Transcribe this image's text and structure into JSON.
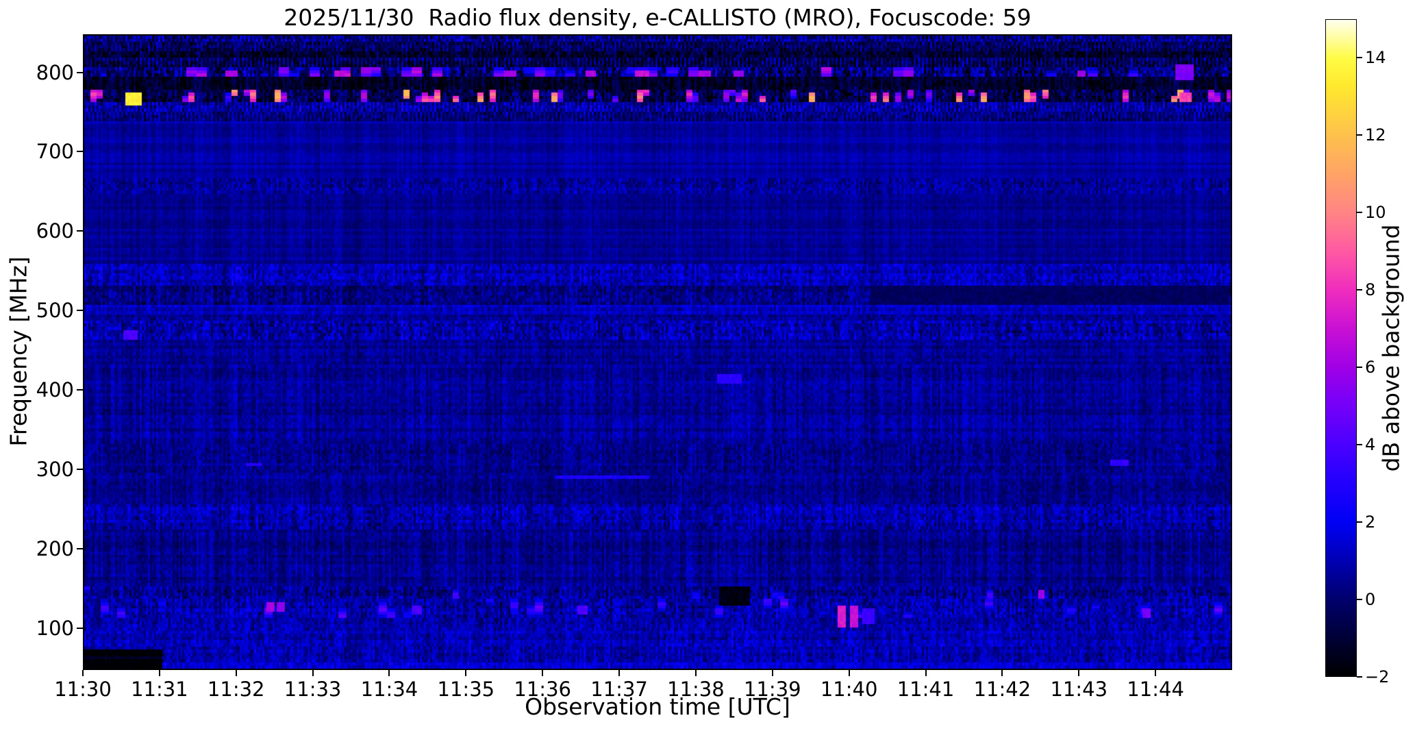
{
  "title": "2025/11/30  Radio flux density, e-CALLISTO (MRO), Focuscode: 59",
  "chart_data": {
    "type": "heatmap",
    "title": "2025/11/30  Radio flux density, e-CALLISTO (MRO), Focuscode: 59",
    "xlabel": "Observation time [UTC]",
    "ylabel": "Frequency [MHz]",
    "colorbar_label": "dB above background",
    "x_ticks": [
      "11:30",
      "11:31",
      "11:32",
      "11:33",
      "11:34",
      "11:35",
      "11:36",
      "11:37",
      "11:38",
      "11:39",
      "11:40",
      "11:41",
      "11:42",
      "11:43",
      "11:44"
    ],
    "y_ticks": [
      "800",
      "700",
      "600",
      "500",
      "400",
      "300",
      "200",
      "100"
    ],
    "y_tick_values": [
      800,
      700,
      600,
      500,
      400,
      300,
      200,
      100
    ],
    "colorbar_tick_labels": [
      "14",
      "12",
      "10",
      "8",
      "6",
      "4",
      "2",
      "0",
      "−2"
    ],
    "colorbar_tick_values": [
      14,
      12,
      10,
      8,
      6,
      4,
      2,
      0,
      -2
    ],
    "time_range_utc": [
      "11:30",
      "11:45"
    ],
    "time_range_min": [
      0,
      15
    ],
    "freq_range_mhz": [
      47,
      848
    ],
    "value_range_db": [
      -2,
      15
    ],
    "grid": false,
    "legend": "colorbar-right",
    "colormap": {
      "name": "gnuplot2-like",
      "stops": [
        [
          0.0,
          "#000000"
        ],
        [
          0.06,
          "#000038"
        ],
        [
          0.118,
          "#00006e"
        ],
        [
          0.176,
          "#0000b4"
        ],
        [
          0.235,
          "#0000f5"
        ],
        [
          0.31,
          "#2c00ff"
        ],
        [
          0.353,
          "#4b00ff"
        ],
        [
          0.42,
          "#7a00f8"
        ],
        [
          0.471,
          "#a000e6"
        ],
        [
          0.53,
          "#c911d4"
        ],
        [
          0.588,
          "#ef2dbe"
        ],
        [
          0.647,
          "#ff59a3"
        ],
        [
          0.706,
          "#ff8484"
        ],
        [
          0.765,
          "#ffa366"
        ],
        [
          0.824,
          "#fdc14c"
        ],
        [
          0.9,
          "#ffe92e"
        ],
        [
          0.941,
          "#fffb45"
        ],
        [
          1.0,
          "#fffff0"
        ]
      ]
    },
    "bands": [
      {
        "f_hi": 848,
        "f_lo": 838,
        "base": 0.2,
        "spk": 1.3,
        "streak": 0.9,
        "comb": 1
      },
      {
        "f_hi": 838,
        "f_lo": 829,
        "base": -0.5,
        "spk": 1.1,
        "streak": 0.8,
        "comb": 1
      },
      {
        "f_hi": 829,
        "f_lo": 818,
        "base": -1.0,
        "spk": 0.9,
        "streak": 1.0,
        "comb": 0
      },
      {
        "f_hi": 818,
        "f_lo": 806,
        "base": -0.8,
        "spk": 1.1,
        "streak": 1.3,
        "comb": 1
      },
      {
        "f_hi": 806,
        "f_lo": 794,
        "base": 0.1,
        "spk": 1.5,
        "streak": 1.3,
        "comb": 0,
        "dots": {
          "rate": 0.22,
          "lo": 2.5,
          "hi": 7.5,
          "w": 5,
          "h": 3
        }
      },
      {
        "f_hi": 794,
        "f_lo": 780,
        "base": -1.3,
        "spk": 0.7,
        "streak": 0.9,
        "comb": 0
      },
      {
        "f_hi": 780,
        "f_lo": 764,
        "base": -0.7,
        "spk": 1.2,
        "streak": 1.0,
        "comb": 0,
        "dots": {
          "rate": 0.3,
          "lo": 4,
          "hi": 12.5,
          "w": 3,
          "h": 2
        }
      },
      {
        "f_hi": 764,
        "f_lo": 752,
        "base": 0.5,
        "spk": 1.1,
        "streak": 1.0,
        "comb": 1
      },
      {
        "f_hi": 752,
        "f_lo": 740,
        "base": 0.1,
        "spk": 0.9,
        "streak": 0.8,
        "comb": 1
      },
      {
        "f_hi": 740,
        "f_lo": 668,
        "base": 0.7,
        "spk": 0.22,
        "streak": 0.25,
        "comb": 0
      },
      {
        "f_hi": 668,
        "f_lo": 649,
        "base": 0.75,
        "spk": 0.8,
        "streak": 0.6,
        "comb": 0
      },
      {
        "f_hi": 649,
        "f_lo": 561,
        "base": 0.5,
        "spk": 0.28,
        "streak": 0.3,
        "comb": 0
      },
      {
        "f_hi": 561,
        "f_lo": 532,
        "base": 1.0,
        "spk": 0.85,
        "streak": 0.7,
        "comb": 0
      },
      {
        "f_hi": 532,
        "f_lo": 506,
        "base": 0.3,
        "spk": 0.8,
        "streak": 0.7,
        "comb": 0
      },
      {
        "f_hi": 506,
        "f_lo": 494,
        "base": 1.15,
        "spk": 0.6,
        "streak": 0.5,
        "comb": 0
      },
      {
        "f_hi": 494,
        "f_lo": 486,
        "base": 0.5,
        "spk": 0.6,
        "streak": 0.5,
        "comb": 0
      },
      {
        "f_hi": 486,
        "f_lo": 462,
        "base": 0.85,
        "spk": 1.05,
        "streak": 0.9,
        "comb": 0
      },
      {
        "f_hi": 462,
        "f_lo": 430,
        "base": 0.5,
        "spk": 0.5,
        "streak": 0.5,
        "comb": 0
      },
      {
        "f_hi": 430,
        "f_lo": 330,
        "base": 0.55,
        "spk": 0.5,
        "streak": 0.6,
        "comb": 0
      },
      {
        "f_hi": 330,
        "f_lo": 296,
        "base": 0.5,
        "spk": 0.6,
        "streak": 0.6,
        "comb": 0
      },
      {
        "f_hi": 296,
        "f_lo": 256,
        "base": 0.4,
        "spk": 0.5,
        "streak": 0.55,
        "comb": 0
      },
      {
        "f_hi": 256,
        "f_lo": 222,
        "base": 0.85,
        "spk": 0.85,
        "streak": 0.8,
        "comb": 0
      },
      {
        "f_hi": 222,
        "f_lo": 152,
        "base": 0.4,
        "spk": 0.5,
        "streak": 0.7,
        "comb": 0
      },
      {
        "f_hi": 152,
        "f_lo": 134,
        "base": 0.55,
        "spk": 0.9,
        "streak": 0.9,
        "comb": 0,
        "dots": {
          "rate": 0.05,
          "lo": 2.5,
          "hi": 5,
          "w": 3,
          "h": 2
        }
      },
      {
        "f_hi": 134,
        "f_lo": 112,
        "base": 0.7,
        "spk": 0.95,
        "streak": 0.9,
        "comb": 0,
        "dots": {
          "rate": 0.1,
          "lo": 2.5,
          "hi": 5.5,
          "w": 4,
          "h": 3
        }
      },
      {
        "f_hi": 112,
        "f_lo": 96,
        "base": 0.8,
        "spk": 0.75,
        "streak": 0.7,
        "comb": 0
      },
      {
        "f_hi": 96,
        "f_lo": 74,
        "base": 1.0,
        "spk": 0.7,
        "streak": 0.7,
        "comb": 0
      },
      {
        "f_hi": 74,
        "f_lo": 54,
        "base": 0.9,
        "spk": 0.75,
        "streak": 0.8,
        "comb": 0
      },
      {
        "f_hi": 54,
        "f_lo": 47,
        "base": 1.35,
        "spk": 0.7,
        "streak": 0.6,
        "comb": 0
      }
    ],
    "features": [
      {
        "t0": 10.3,
        "t1": 15.0,
        "f0": 508,
        "f1": 530,
        "db": -0.3,
        "name": "darker-band-right"
      },
      {
        "t0": 0.0,
        "t1": 1.01,
        "f0": 47,
        "f1": 73,
        "db": -2.0,
        "name": "bottom-left-data-gap"
      },
      {
        "t0": 0.0,
        "t1": 1.01,
        "f0": 58,
        "f1": 62,
        "db": -1.2,
        "name": "faint-row-in-gap"
      },
      {
        "t0": 0.52,
        "t1": 0.74,
        "f0": 761,
        "f1": 777,
        "db": 13.5,
        "name": "yellow-rfi-burst-770mhz"
      },
      {
        "t0": 0.5,
        "t1": 0.68,
        "f0": 463,
        "f1": 474,
        "db": 4.0
      },
      {
        "t0": 1.85,
        "t1": 2.0,
        "f0": 795,
        "f1": 804,
        "db": 6.2
      },
      {
        "t0": 3.25,
        "t1": 3.42,
        "f0": 795,
        "f1": 805,
        "db": 6.8
      },
      {
        "t0": 5.5,
        "t1": 5.65,
        "f0": 796,
        "f1": 804,
        "db": 6.0
      },
      {
        "t0": 6.55,
        "t1": 6.7,
        "f0": 795,
        "f1": 804,
        "db": 6.5
      },
      {
        "t0": 7.2,
        "t1": 7.38,
        "f0": 796,
        "f1": 805,
        "db": 7.0
      },
      {
        "t0": 8.05,
        "t1": 8.2,
        "f0": 795,
        "f1": 803,
        "db": 6.2
      },
      {
        "t0": 8.5,
        "t1": 8.62,
        "f0": 796,
        "f1": 804,
        "db": 5.8
      },
      {
        "t0": 13.0,
        "t1": 13.12,
        "f0": 795,
        "f1": 804,
        "db": 6.0
      },
      {
        "t0": 14.3,
        "t1": 14.52,
        "f0": 792,
        "f1": 812,
        "db": 5.2
      },
      {
        "t0": 14.33,
        "t1": 14.5,
        "f0": 763,
        "f1": 777,
        "db": 8.5
      },
      {
        "t0": 8.28,
        "t1": 8.6,
        "f0": 408,
        "f1": 418,
        "db": 3.2
      },
      {
        "t0": 6.15,
        "t1": 7.4,
        "f0": 287,
        "f1": 293,
        "db": 2.7
      },
      {
        "t0": 2.1,
        "t1": 2.33,
        "f0": 302,
        "f1": 308,
        "db": 3.0
      },
      {
        "t0": 13.42,
        "t1": 13.68,
        "f0": 305,
        "f1": 312,
        "db": 3.4
      },
      {
        "t0": 9.85,
        "t1": 9.97,
        "f0": 99,
        "f1": 127,
        "db": 7.4,
        "name": "magenta-blob-1140"
      },
      {
        "t0": 10.02,
        "t1": 10.12,
        "f0": 99,
        "f1": 127,
        "db": 6.9
      },
      {
        "t0": 10.18,
        "t1": 10.34,
        "f0": 104,
        "f1": 122,
        "db": 3.6
      },
      {
        "t0": 2.37,
        "t1": 2.47,
        "f0": 119,
        "f1": 130,
        "db": 6.2
      },
      {
        "t0": 2.52,
        "t1": 2.62,
        "f0": 119,
        "f1": 130,
        "db": 5.6
      },
      {
        "t0": 4.28,
        "t1": 4.42,
        "f0": 117,
        "f1": 128,
        "db": 4.0
      },
      {
        "t0": 6.45,
        "t1": 6.6,
        "f0": 117,
        "f1": 128,
        "db": 4.2
      },
      {
        "t0": 8.3,
        "t1": 8.72,
        "f0": 128,
        "f1": 150,
        "db": -1.7,
        "name": "black-patch-1138"
      },
      {
        "t0": 12.5,
        "t1": 12.58,
        "f0": 135,
        "f1": 146,
        "db": 6.0
      },
      {
        "t0": 13.85,
        "t1": 13.98,
        "f0": 113,
        "f1": 124,
        "db": 5.0
      }
    ]
  }
}
